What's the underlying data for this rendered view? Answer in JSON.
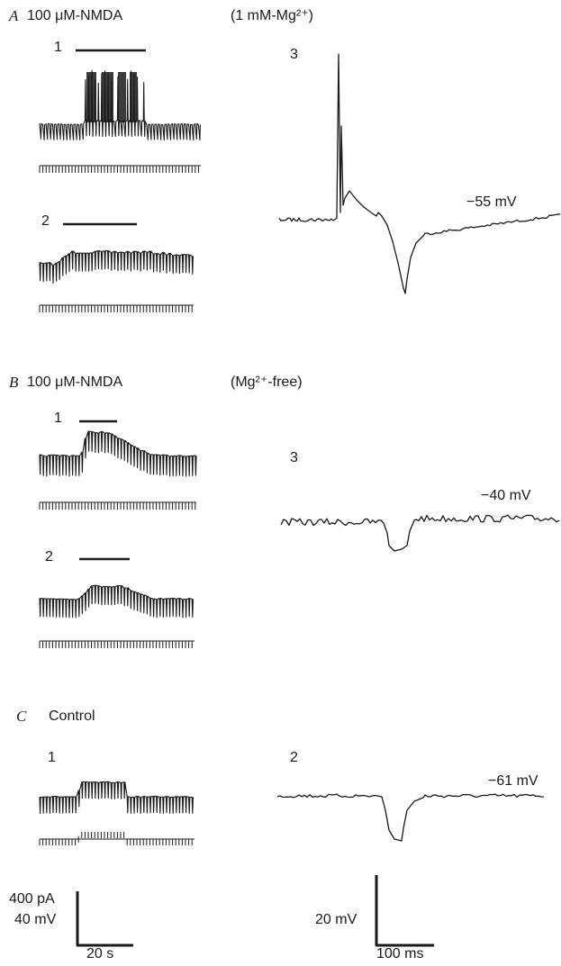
{
  "panels": {
    "A": {
      "letter": "A",
      "drug_label": "100 μM-NMDA",
      "condition": "(1 mM-Mg²⁺)",
      "trace_1_number": "1",
      "trace_2_number": "2",
      "trace_3_number": "3",
      "potential": "−55 mV"
    },
    "B": {
      "letter": "B",
      "drug_label": "100 μM-NMDA",
      "condition": "(Mg²⁺-free)",
      "trace_1_number": "1",
      "trace_2_number": "2",
      "trace_3_number": "3",
      "potential": "−40 mV"
    },
    "C": {
      "letter": "C",
      "drug_label": "Control",
      "trace_1_number": "1",
      "trace_2_number": "2",
      "potential": "−61 mV"
    }
  },
  "scale_bars": {
    "left": {
      "current": "400 pA",
      "voltage": "40 mV",
      "time": "20 s"
    },
    "right": {
      "voltage": "20 mV",
      "time": "100 ms"
    }
  }
}
